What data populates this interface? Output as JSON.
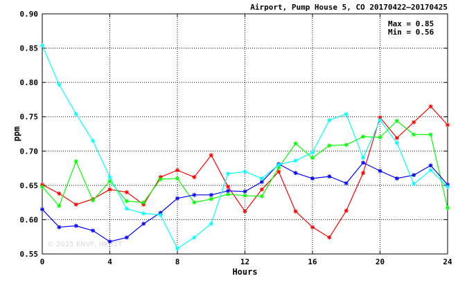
{
  "chart_data": {
    "type": "line",
    "title": "Airport, Pump House 5, CO 20170422–20170425",
    "xlabel": "Hours",
    "ylabel": "ppm",
    "xlim": [
      0,
      24
    ],
    "ylim": [
      0.55,
      0.9
    ],
    "xticks": [
      0,
      4,
      8,
      12,
      16,
      20,
      24
    ],
    "yticks": [
      0.55,
      0.6,
      0.65,
      0.7,
      0.75,
      0.8,
      0.85,
      0.9
    ],
    "grid": true,
    "stats": {
      "max_label": "Max = 0.85",
      "min_label": "Min = 0.56"
    },
    "watermark": "© 2025 ENVF, HKUST",
    "x": [
      0,
      1,
      2,
      3,
      4,
      5,
      6,
      7,
      8,
      9,
      10,
      11,
      12,
      13,
      14,
      15,
      16,
      17,
      18,
      19,
      20,
      21,
      22,
      23,
      24
    ],
    "series": [
      {
        "color": "#ff0000",
        "values": [
          0.651,
          0.638,
          0.622,
          0.63,
          0.644,
          0.64,
          0.622,
          0.662,
          0.672,
          0.662,
          0.694,
          0.648,
          0.612,
          0.644,
          0.67,
          0.612,
          0.589,
          0.574,
          0.613,
          0.668,
          0.749,
          0.719,
          0.742,
          0.765,
          0.738
        ]
      },
      {
        "color": "#00ff00",
        "values": [
          0.648,
          0.62,
          0.685,
          0.628,
          0.656,
          0.627,
          0.625,
          0.659,
          0.66,
          0.625,
          0.63,
          0.637,
          0.635,
          0.634,
          0.676,
          0.711,
          0.69,
          0.708,
          0.709,
          0.721,
          0.72,
          0.744,
          0.724,
          0.724,
          0.617
        ]
      },
      {
        "color": "#0000ff",
        "values": [
          0.615,
          0.589,
          0.591,
          0.584,
          0.568,
          0.574,
          0.594,
          0.61,
          0.631,
          0.636,
          0.636,
          0.642,
          0.641,
          0.655,
          0.681,
          0.668,
          0.66,
          0.663,
          0.653,
          0.683,
          0.671,
          0.66,
          0.665,
          0.679,
          0.651
        ]
      },
      {
        "color": "#00ffff",
        "values": [
          0.854,
          0.797,
          0.754,
          0.715,
          0.662,
          0.616,
          0.609,
          0.607,
          0.558,
          0.574,
          0.594,
          0.667,
          0.67,
          0.66,
          0.68,
          0.686,
          0.698,
          0.745,
          0.754,
          0.69,
          0.745,
          0.712,
          0.652,
          0.672,
          0.648
        ]
      }
    ]
  }
}
